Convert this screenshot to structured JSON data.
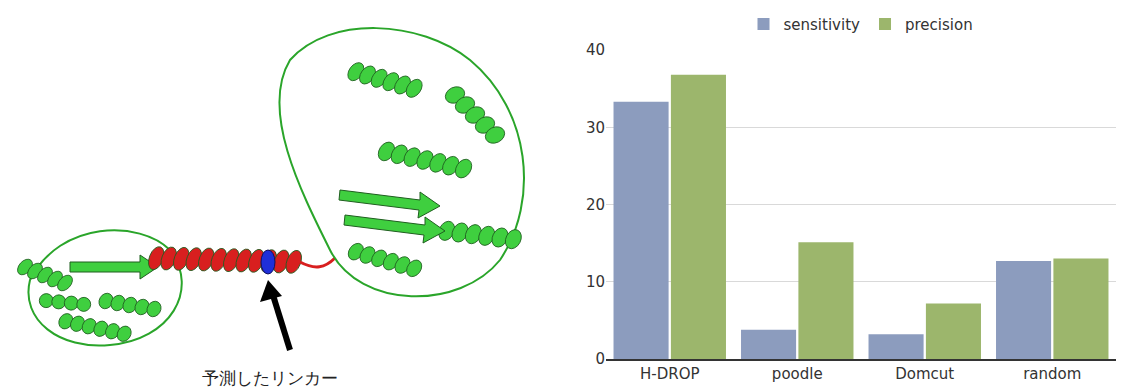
{
  "chart_data": {
    "type": "bar",
    "categories": [
      "H-DROP",
      "poodle",
      "Domcut",
      "random"
    ],
    "series": [
      {
        "name": "sensitivity",
        "color": "#8c9cbe",
        "values": [
          33.3,
          3.8,
          3.2,
          12.7
        ]
      },
      {
        "name": "precision",
        "color": "#9cb66c",
        "values": [
          36.8,
          15.1,
          7.2,
          13.0
        ]
      }
    ],
    "ylim": [
      0,
      40
    ],
    "yticks": [
      0,
      10,
      20,
      30,
      40
    ],
    "grid": true,
    "legend": "top"
  },
  "figure": {
    "caption": "予測したリンカー"
  }
}
